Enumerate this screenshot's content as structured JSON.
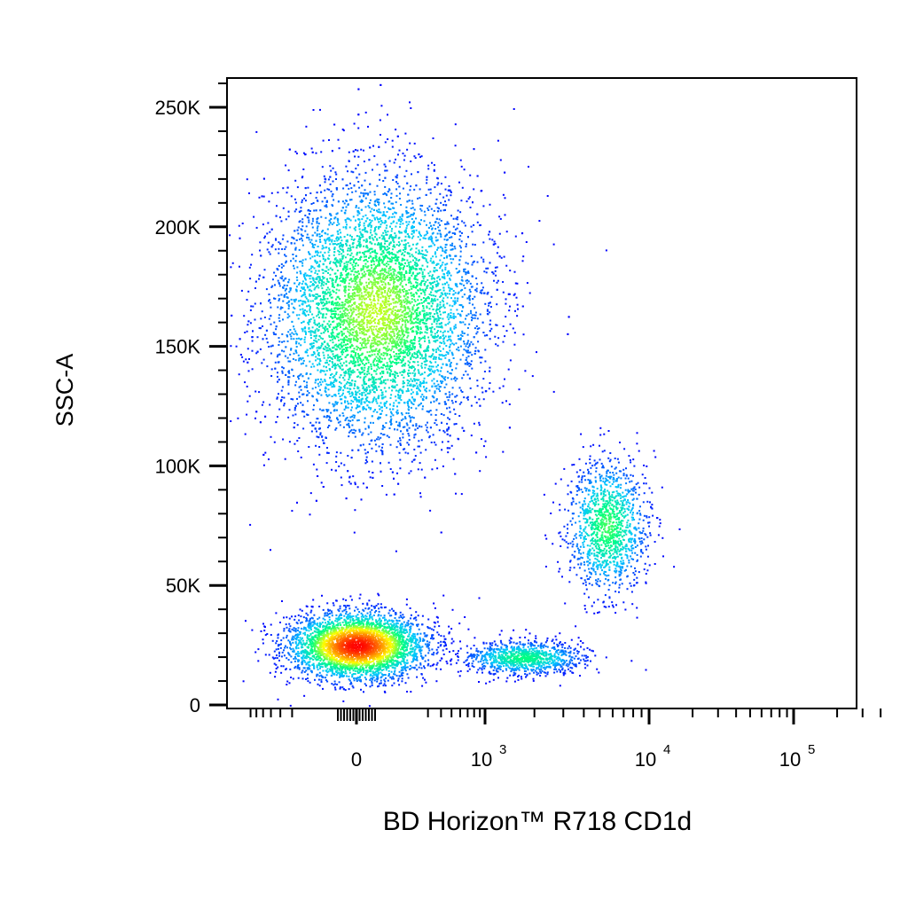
{
  "chart_data": {
    "type": "scatter",
    "subtype": "flow-cytometry-pseudocolor-density",
    "xlabel": "BD Horizon™ R718 CD1d",
    "ylabel": "SSC-A",
    "x_scale": "biexponential",
    "y_scale": "linear",
    "ylim": [
      0,
      262144
    ],
    "y_ticks": [
      {
        "value": 0,
        "label": "0"
      },
      {
        "value": 50000,
        "label": "50K"
      },
      {
        "value": 100000,
        "label": "100K"
      },
      {
        "value": 150000,
        "label": "150K"
      },
      {
        "value": 200000,
        "label": "200K"
      },
      {
        "value": 250000,
        "label": "250K"
      }
    ],
    "x_ticks": [
      {
        "value": 0,
        "base": "0",
        "exp": ""
      },
      {
        "value": 1000,
        "base": "10",
        "exp": "3"
      },
      {
        "value": 10000,
        "base": "10",
        "exp": "4"
      },
      {
        "value": 100000,
        "base": "10",
        "exp": "5"
      }
    ],
    "color_scale": [
      "#0000ff",
      "#00c8ff",
      "#00ff80",
      "#ffff00",
      "#ff8000",
      "#ff0000"
    ],
    "grid": false,
    "populations": [
      {
        "x_center": 60,
        "y_center": 165000,
        "x_spread": 250,
        "y_spread": 28000,
        "events": 7000,
        "peak_density": 0.55
      },
      {
        "x_center": 0,
        "y_center": 25000,
        "x_spread": 110,
        "y_spread": 7000,
        "events": 3800,
        "peak_density": 1.0
      },
      {
        "x_center": 1700,
        "y_center": 20000,
        "x_spread": 900,
        "y_spread": 3500,
        "events": 1000,
        "peak_density": 0.4
      },
      {
        "x_center": 5500,
        "y_center": 75000,
        "x_spread": 1800,
        "y_spread": 14000,
        "events": 1300,
        "peak_density": 0.45
      }
    ]
  }
}
